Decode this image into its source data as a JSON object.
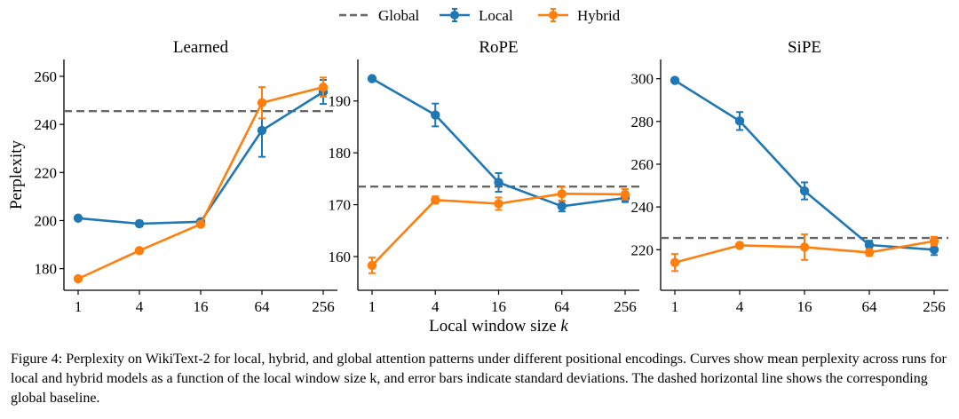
{
  "chart_data": [
    {
      "type": "line",
      "title": "Learned",
      "xlabel": "",
      "ylabel": "Perplexity",
      "x_scale": "log2",
      "x": [
        1,
        4,
        16,
        64,
        256
      ],
      "x_tick_labels": [
        "1",
        "4",
        "16",
        "64",
        "256"
      ],
      "ylim": [
        171,
        267
      ],
      "y_ticks": [
        180,
        200,
        220,
        240,
        260
      ],
      "grid": false,
      "global": 245.5,
      "series": [
        {
          "name": "Local",
          "values": [
            201,
            198.7,
            199.5,
            237.5,
            253.5
          ],
          "errors": [
            0,
            1.2,
            0,
            11,
            5
          ]
        },
        {
          "name": "Hybrid",
          "values": [
            175.8,
            187.5,
            198.5,
            249,
            255.5
          ],
          "errors": [
            0,
            0,
            0,
            6.5,
            4
          ]
        }
      ]
    },
    {
      "type": "line",
      "title": "RoPE",
      "xlabel": "Local window size k",
      "ylabel": "",
      "x_scale": "log2",
      "x": [
        1,
        4,
        16,
        64,
        256
      ],
      "x_tick_labels": [
        "1",
        "4",
        "16",
        "64",
        "256"
      ],
      "ylim": [
        153.5,
        198
      ],
      "y_ticks": [
        160,
        170,
        180,
        190
      ],
      "grid": false,
      "global": 173.5,
      "series": [
        {
          "name": "Local",
          "values": [
            194.3,
            187.3,
            174.3,
            169.7,
            171.3
          ],
          "errors": [
            0,
            2.2,
            1.8,
            1,
            0.8
          ]
        },
        {
          "name": "Hybrid",
          "values": [
            158.3,
            170.9,
            170.2,
            172.1,
            172.0
          ],
          "errors": [
            1.5,
            0.7,
            1.2,
            1.3,
            1
          ]
        }
      ]
    },
    {
      "type": "line",
      "title": "SiPE",
      "xlabel": "",
      "ylabel": "",
      "x_scale": "log2",
      "x": [
        1,
        4,
        16,
        64,
        256
      ],
      "x_tick_labels": [
        "1",
        "4",
        "16",
        "64",
        "256"
      ],
      "ylim": [
        201,
        309
      ],
      "y_ticks": [
        220,
        240,
        260,
        280,
        300
      ],
      "grid": false,
      "global": 225.5,
      "series": [
        {
          "name": "Local",
          "values": [
            299.2,
            280.2,
            247.5,
            222.2,
            220
          ],
          "errors": [
            0,
            4.2,
            4,
            2,
            2.5
          ]
        },
        {
          "name": "Hybrid",
          "values": [
            214,
            222,
            221.2,
            218.7,
            224
          ],
          "errors": [
            4,
            0,
            6,
            1.5,
            2
          ]
        }
      ]
    }
  ],
  "legend": {
    "placement": "top-center",
    "entries": [
      {
        "name": "Global",
        "style": "dashed"
      },
      {
        "name": "Local",
        "style": "line-marker"
      },
      {
        "name": "Hybrid",
        "style": "line-marker"
      }
    ]
  },
  "colors": {
    "Global": "#666666",
    "Local": "#1f77b4",
    "Hybrid": "#ff7f0e"
  },
  "caption": "Figure 4: Perplexity on WikiText-2 for local, hybrid, and global attention patterns under different positional encodings. Curves show mean perplexity across runs for local and hybrid models as a function of the local window size k, and error bars indicate standard deviations. The dashed horizontal line shows the corresponding global baseline."
}
